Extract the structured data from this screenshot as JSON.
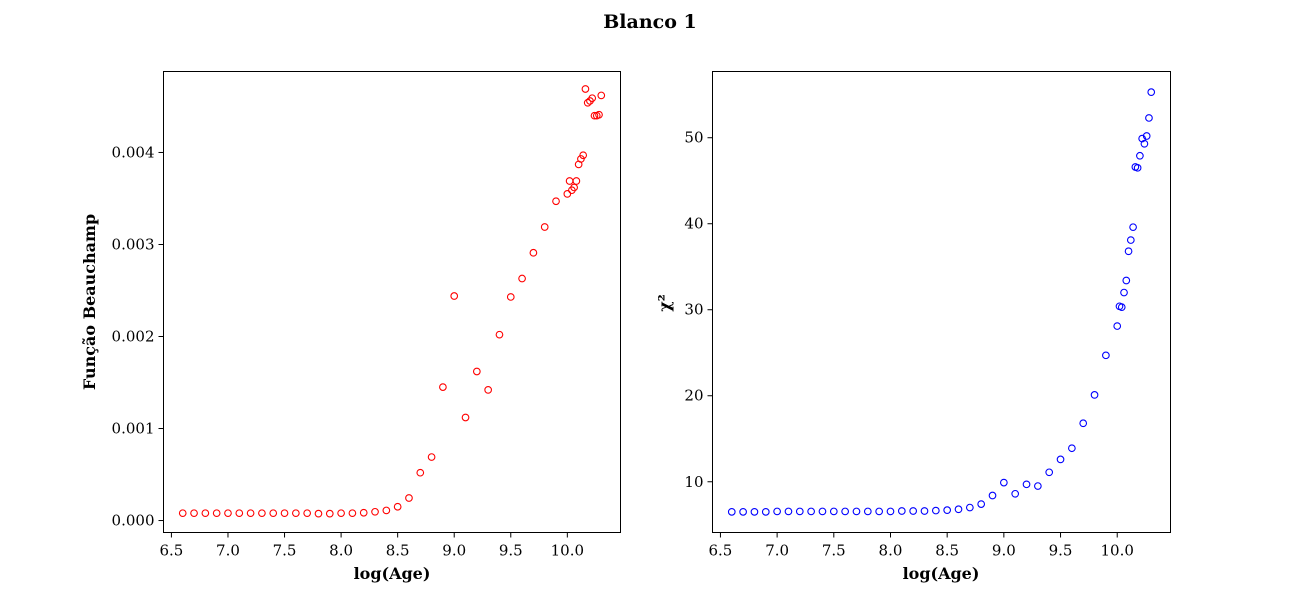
{
  "figure": {
    "title": "Blanco 1"
  },
  "chart_data": [
    {
      "type": "scatter",
      "title": "",
      "xlabel": "log(Age)",
      "ylabel": "Função Beauchamp",
      "xlim": [
        6.43,
        10.47
      ],
      "ylim": [
        -0.00013,
        0.00488
      ],
      "xticks": [
        "6.5",
        "7.0",
        "7.5",
        "8.0",
        "8.5",
        "9.0",
        "9.5",
        "10.0"
      ],
      "yticks": [
        "0.000",
        "0.001",
        "0.002",
        "0.003",
        "0.004"
      ],
      "grid": false,
      "marker_color": "#ff0000",
      "x": [
        6.6,
        6.7,
        6.8,
        6.9,
        7.0,
        7.1,
        7.2,
        7.3,
        7.4,
        7.5,
        7.6,
        7.7,
        7.8,
        7.9,
        8.0,
        8.1,
        8.2,
        8.3,
        8.4,
        8.5,
        8.6,
        8.7,
        8.8,
        8.9,
        9.0,
        9.1,
        9.2,
        9.3,
        9.4,
        9.5,
        9.6,
        9.7,
        9.8,
        9.9,
        10.0,
        10.02,
        10.04,
        10.06,
        10.08,
        10.1,
        10.12,
        10.14,
        10.16,
        10.18,
        10.2,
        10.22,
        10.24,
        10.26,
        10.28,
        10.3
      ],
      "y": [
        8e-05,
        8e-05,
        8e-05,
        8e-05,
        8e-05,
        8e-05,
        8e-05,
        8e-05,
        8e-05,
        8e-05,
        8e-05,
        8e-05,
        7.5e-05,
        7.5e-05,
        8e-05,
        8e-05,
        8.5e-05,
        9.5e-05,
        0.00011,
        0.00015,
        0.000245,
        0.00052,
        0.00069,
        0.00145,
        0.00244,
        0.00112,
        0.00162,
        0.00142,
        0.00202,
        0.00243,
        0.00263,
        0.00291,
        0.00319,
        0.00347,
        0.00355,
        0.00369,
        0.00359,
        0.00362,
        0.00369,
        0.00387,
        0.00393,
        0.00397,
        0.00469,
        0.00454,
        0.00456,
        0.00459,
        0.0044,
        0.0044,
        0.00441,
        0.00462
      ]
    },
    {
      "type": "scatter",
      "title": "",
      "xlabel": "log(Age)",
      "ylabel": "χ²",
      "xlim": [
        6.43,
        10.47
      ],
      "ylim": [
        4.1,
        57.7
      ],
      "xticks": [
        "6.5",
        "7.0",
        "7.5",
        "8.0",
        "8.5",
        "9.0",
        "9.5",
        "10.0"
      ],
      "yticks": [
        "10",
        "20",
        "30",
        "40",
        "50"
      ],
      "grid": false,
      "marker_color": "#0000ff",
      "x": [
        6.6,
        6.7,
        6.8,
        6.9,
        7.0,
        7.1,
        7.2,
        7.3,
        7.4,
        7.5,
        7.6,
        7.7,
        7.8,
        7.9,
        8.0,
        8.1,
        8.2,
        8.3,
        8.4,
        8.5,
        8.6,
        8.7,
        8.8,
        8.9,
        9.0,
        9.1,
        9.2,
        9.3,
        9.4,
        9.5,
        9.6,
        9.7,
        9.8,
        9.9,
        10.0,
        10.02,
        10.04,
        10.06,
        10.08,
        10.1,
        10.12,
        10.14,
        10.16,
        10.18,
        10.2,
        10.22,
        10.24,
        10.26,
        10.28,
        10.3
      ],
      "y": [
        6.5,
        6.5,
        6.5,
        6.5,
        6.55,
        6.55,
        6.55,
        6.55,
        6.55,
        6.55,
        6.55,
        6.55,
        6.55,
        6.55,
        6.55,
        6.6,
        6.6,
        6.6,
        6.65,
        6.7,
        6.8,
        7.0,
        7.4,
        8.4,
        9.9,
        8.6,
        9.7,
        9.5,
        11.1,
        12.6,
        13.9,
        16.8,
        20.1,
        24.7,
        28.1,
        30.4,
        30.3,
        32.0,
        33.4,
        36.8,
        38.1,
        39.6,
        46.6,
        46.5,
        47.9,
        49.9,
        49.3,
        50.2,
        52.3,
        55.3
      ]
    }
  ]
}
